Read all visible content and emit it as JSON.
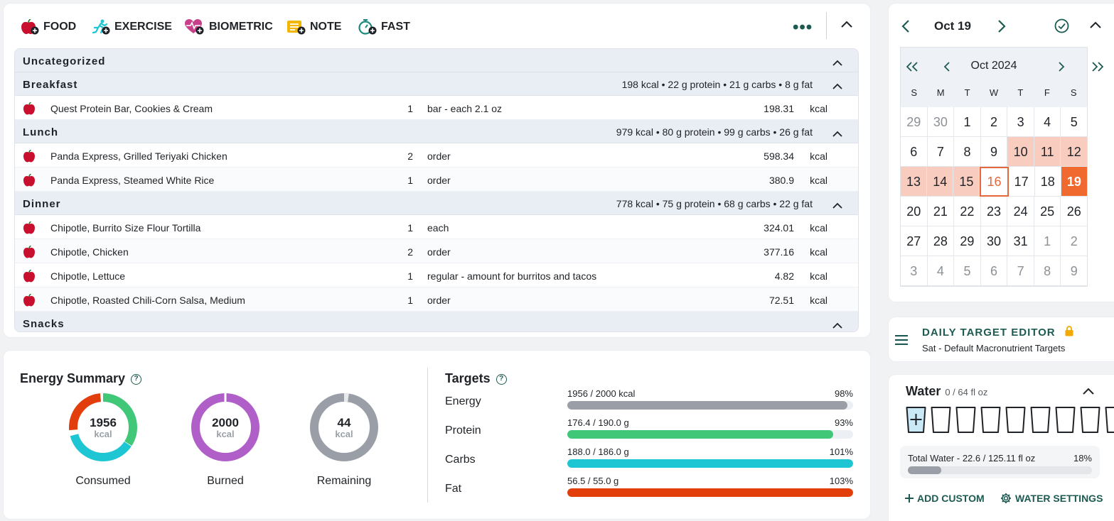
{
  "toolbar": {
    "food_label": "FOOD",
    "exercise_label": "EXERCISE",
    "biometric_label": "BIOMETRIC",
    "note_label": "NOTE",
    "fast_label": "FAST",
    "more_label": "•••"
  },
  "diary": {
    "groups": [
      {
        "name": "Uncategorized",
        "summary": "",
        "items": []
      },
      {
        "name": "Breakfast",
        "summary": "198 kcal • 22 g protein • 21 g carbs • 8 g fat",
        "items": [
          {
            "name": "Quest Protein Bar, Cookies & Cream",
            "qty": "1",
            "unit": "bar - each 2.1 oz",
            "kcal": "198.31",
            "kcal_unit": "kcal"
          }
        ]
      },
      {
        "name": "Lunch",
        "summary": "979 kcal • 80 g protein • 99 g carbs • 26 g fat",
        "items": [
          {
            "name": "Panda Express, Grilled Teriyaki Chicken",
            "qty": "2",
            "unit": "order",
            "kcal": "598.34",
            "kcal_unit": "kcal"
          },
          {
            "name": "Panda Express, Steamed White Rice",
            "qty": "1",
            "unit": "order",
            "kcal": "380.9",
            "kcal_unit": "kcal"
          }
        ]
      },
      {
        "name": "Dinner",
        "summary": "778 kcal • 75 g protein • 68 g carbs • 22 g fat",
        "items": [
          {
            "name": "Chipotle, Burrito Size Flour Tortilla",
            "qty": "1",
            "unit": "each",
            "kcal": "324.01",
            "kcal_unit": "kcal"
          },
          {
            "name": "Chipotle, Chicken",
            "qty": "2",
            "unit": "order",
            "kcal": "377.16",
            "kcal_unit": "kcal"
          },
          {
            "name": "Chipotle, Lettuce",
            "qty": "1",
            "unit": "regular - amount for burritos and tacos",
            "kcal": "4.82",
            "kcal_unit": "kcal"
          },
          {
            "name": "Chipotle, Roasted Chili-Corn Salsa, Medium",
            "qty": "1",
            "unit": "order",
            "kcal": "72.51",
            "kcal_unit": "kcal"
          }
        ]
      },
      {
        "name": "Snacks",
        "summary": "",
        "items": []
      }
    ]
  },
  "energy": {
    "title": "Energy Summary",
    "help": "?",
    "donuts": [
      {
        "value": "1956",
        "unit": "kcal",
        "label": "Consumed"
      },
      {
        "value": "2000",
        "unit": "kcal",
        "label": "Burned"
      },
      {
        "value": "44",
        "unit": "kcal",
        "label": "Remaining"
      }
    ]
  },
  "targets": {
    "title": "Targets",
    "help": "?",
    "rows": [
      {
        "name": "Energy",
        "value": "1956 / 2000 kcal",
        "pct": "98%",
        "fraction": 0.98,
        "color": "#9a9ea7"
      },
      {
        "name": "Protein",
        "value": "176.4 / 190.0 g",
        "pct": "93%",
        "fraction": 0.93,
        "color": "#40c778"
      },
      {
        "name": "Carbs",
        "value": "188.0 / 186.0 g",
        "pct": "101%",
        "fraction": 1.0,
        "color": "#1ec6d3"
      },
      {
        "name": "Fat",
        "value": "56.5 / 55.0 g",
        "pct": "103%",
        "fraction": 1.0,
        "color": "#e23e0c"
      }
    ]
  },
  "calendar": {
    "date": "Oct 19",
    "month": "Oct 2024",
    "weekdays": [
      "S",
      "M",
      "T",
      "W",
      "T",
      "F",
      "S"
    ],
    "weeks": [
      [
        "29",
        "30",
        "1",
        "2",
        "3",
        "4",
        "5"
      ],
      [
        "6",
        "7",
        "8",
        "9",
        "10",
        "11",
        "12"
      ],
      [
        "13",
        "14",
        "15",
        "16",
        "17",
        "18",
        "19"
      ],
      [
        "20",
        "21",
        "22",
        "23",
        "24",
        "25",
        "26"
      ],
      [
        "27",
        "28",
        "29",
        "30",
        "31",
        "1",
        "2"
      ],
      [
        "3",
        "4",
        "5",
        "6",
        "7",
        "8",
        "9"
      ]
    ]
  },
  "target_editor": {
    "title": "DAILY TARGET EDITOR",
    "subtitle": "Sat - Default Macronutrient Targets"
  },
  "water": {
    "title": "Water",
    "count": "0 / 64 fl oz",
    "cups": 9,
    "total": "Total Water - 22.6 / 125.11 fl oz",
    "pct": "18%",
    "fraction": 0.18,
    "add_custom": "ADD CUSTOM",
    "settings": "WATER SETTINGS"
  },
  "colors": {
    "accent": "#1c5a52",
    "consumed_fat": "#e23e0c",
    "consumed_protein": "#40c778",
    "consumed_carbs": "#1ec6d3",
    "burned": "#b05fc8",
    "remaining": "#9a9ea7",
    "calendar_highlight": "#f8cdbf",
    "calendar_selected": "#f06a30"
  }
}
